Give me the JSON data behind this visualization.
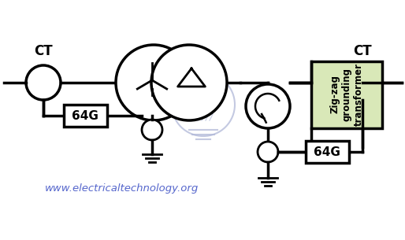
{
  "bg_color": "#ffffff",
  "line_color": "#000000",
  "box_fill": "#d9e8b8",
  "watermark_color": "#b0b8d8",
  "label_color": "#5566cc",
  "title_text": "www.electricaltechnology.org",
  "ct_label": "CT",
  "relay_label_left": "64G",
  "relay_label_right": "64G",
  "transformer_label": "Zig-zag\ngrounding\ntransformer",
  "figsize": [
    5.14,
    3.05
  ],
  "dpi": 100
}
